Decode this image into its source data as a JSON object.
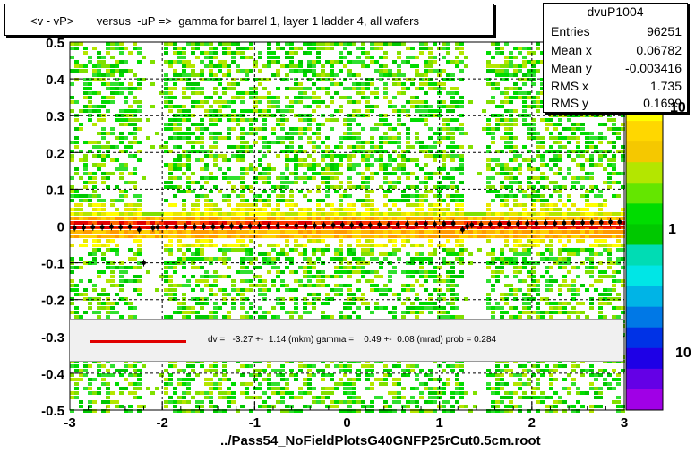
{
  "title": "<v - vP>       versus  -uP =>  gamma for barrel 1, layer 1 ladder 4, all wafers",
  "stats": {
    "name": "dvuP1004",
    "rows": [
      {
        "key": "Entries",
        "value": "96251"
      },
      {
        "key": "Mean x",
        "value": "0.06782"
      },
      {
        "key": "Mean y",
        "value": "-0.003416"
      },
      {
        "key": "RMS x",
        "value": "1.735"
      },
      {
        "key": "RMS y",
        "value": "0.1699"
      }
    ]
  },
  "fit": {
    "text": "dv =   -3.27 +-  1.14 (mkm) gamma =    0.49 +-  0.08 (mrad) prob = 0.284",
    "line_color": "#e00000"
  },
  "footer": "../Pass54_NoFieldPlotsG40GNFP25rCut0.5cm.root",
  "palette": {
    "labels": [
      "10",
      "1",
      "10"
    ],
    "colors": [
      "#ffff00",
      "#ffd700",
      "#f5c800",
      "#b4e600",
      "#64e600",
      "#00dc00",
      "#00c800",
      "#00dcb4",
      "#00e6e6",
      "#00b4e6",
      "#0078e6",
      "#0032e6",
      "#1e00e6",
      "#6400e6",
      "#a000e6"
    ]
  },
  "chart_data": {
    "type": "heatmap",
    "xlim": [
      -3,
      3
    ],
    "ylim": [
      -0.5,
      0.5
    ],
    "x_ticks": [
      "-3",
      "-2",
      "-1",
      "0",
      "1",
      "2",
      "3"
    ],
    "y_ticks": [
      "-0.5",
      "-0.4",
      "-0.3",
      "-0.2",
      "-0.1",
      "0",
      "0.1",
      "0.2",
      "0.3",
      "0.4",
      "0.5"
    ],
    "empty_x_bands": [
      [
        -2.22,
        -2.0
      ],
      [
        1.28,
        1.5
      ]
    ],
    "profile": {
      "x": [
        -2.95,
        -2.85,
        -2.75,
        -2.65,
        -2.55,
        -2.45,
        -2.35,
        -2.25,
        -2.2,
        -2.1,
        -2.05,
        -1.95,
        -1.85,
        -1.75,
        -1.65,
        -1.55,
        -1.45,
        -1.35,
        -1.25,
        -1.15,
        -1.05,
        -0.95,
        -0.85,
        -0.75,
        -0.65,
        -0.55,
        -0.45,
        -0.35,
        -0.25,
        -0.15,
        -0.05,
        0.05,
        0.15,
        0.25,
        0.35,
        0.45,
        0.55,
        0.65,
        0.75,
        0.85,
        0.95,
        1.05,
        1.15,
        1.25,
        1.3,
        1.35,
        1.45,
        1.55,
        1.65,
        1.75,
        1.85,
        1.95,
        2.05,
        2.15,
        2.25,
        2.35,
        2.45,
        2.55,
        2.65,
        2.75,
        2.85,
        2.95
      ],
      "y": [
        -0.005,
        -0.004,
        -0.003,
        -0.003,
        -0.002,
        -0.003,
        -0.002,
        -0.01,
        -0.1,
        -0.005,
        -0.003,
        -0.002,
        -0.002,
        -0.001,
        -0.002,
        -0.001,
        -0.002,
        -0.001,
        0.0,
        -0.001,
        0.0,
        0.001,
        0.0,
        0.001,
        0.002,
        0.001,
        0.0,
        0.001,
        0.002,
        0.002,
        0.003,
        0.002,
        0.003,
        0.002,
        0.004,
        0.003,
        0.004,
        0.005,
        0.005,
        0.006,
        0.005,
        0.006,
        0.007,
        -0.01,
        0.0,
        0.003,
        0.004,
        0.005,
        0.005,
        0.006,
        0.006,
        0.007,
        0.007,
        0.008,
        0.007,
        0.008,
        0.009,
        0.009,
        0.01,
        0.01,
        0.011,
        0.011
      ]
    },
    "fit_line": {
      "slope_per_unit_x": 0.00049,
      "intercept": -0.00327
    }
  }
}
